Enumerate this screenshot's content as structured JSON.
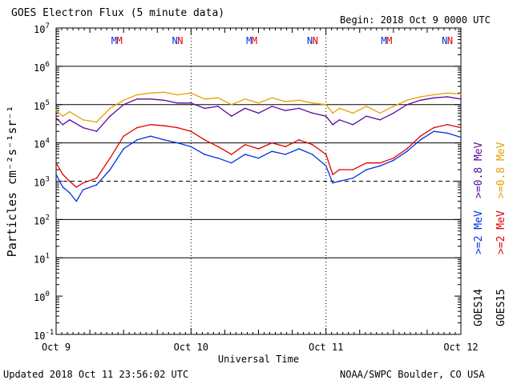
{
  "header": {
    "title": "GOES Electron Flux (5 minute data)",
    "begin": "Begin: 2018 Oct 9 0000 UTC"
  },
  "footer": {
    "updated": "Updated 2018 Oct 11 23:56:02 UTC",
    "credit": "NOAA/SWPC Boulder, CO USA"
  },
  "chart_data": {
    "type": "line",
    "title": "GOES Electron Flux (5 minute data)",
    "xlabel": "Universal Time",
    "ylabel": "Particles cm⁻²s⁻¹sr⁻¹",
    "yscale": "log",
    "ylim": [
      0.1,
      10000000
    ],
    "xlim_days": [
      0,
      3
    ],
    "x_tick_labels": [
      "Oct 9",
      "Oct 10",
      "Oct 11",
      "Oct 12"
    ],
    "y_tick_labels": [
      {
        "base": "10",
        "exp": "-1"
      },
      {
        "base": "10",
        "exp": "0"
      },
      {
        "base": "10",
        "exp": "1"
      },
      {
        "base": "10",
        "exp": "2"
      },
      {
        "base": "10",
        "exp": "3"
      },
      {
        "base": "10",
        "exp": "4"
      },
      {
        "base": "10",
        "exp": "5"
      },
      {
        "base": "10",
        "exp": "6"
      },
      {
        "base": "10",
        "exp": "7"
      }
    ],
    "threshold_dashed": 1000,
    "reference_lines": [
      10,
      100,
      10000,
      100000,
      1000000
    ],
    "grid": "horizontal lines at each decade, dotted vertical day dividers",
    "markers": {
      "M_blue": [
        0.43,
        1.43,
        2.43
      ],
      "M_red": [
        0.47,
        1.47,
        2.47
      ],
      "N_blue": [
        0.88,
        1.88,
        2.88
      ],
      "N_red": [
        0.92,
        1.92,
        2.92
      ]
    },
    "series": [
      {
        "name": "GOES15 >=0.8 MeV",
        "color": "#e8a000",
        "x": [
          0,
          0.05,
          0.1,
          0.2,
          0.3,
          0.4,
          0.5,
          0.6,
          0.7,
          0.8,
          0.9,
          1.0,
          1.1,
          1.2,
          1.3,
          1.4,
          1.5,
          1.6,
          1.7,
          1.8,
          1.9,
          2.0,
          2.05,
          2.1,
          2.2,
          2.3,
          2.4,
          2.5,
          2.6,
          2.7,
          2.8,
          2.9,
          3.0
        ],
        "y": [
          70000,
          50000,
          65000,
          40000,
          35000,
          80000,
          130000,
          180000,
          200000,
          210000,
          180000,
          200000,
          140000,
          150000,
          100000,
          140000,
          110000,
          150000,
          120000,
          130000,
          110000,
          100000,
          60000,
          80000,
          60000,
          90000,
          60000,
          90000,
          130000,
          160000,
          180000,
          200000,
          190000
        ]
      },
      {
        "name": "GOES14 >=0.8 MeV",
        "color": "#5a0a9a",
        "x": [
          0,
          0.05,
          0.1,
          0.2,
          0.3,
          0.4,
          0.5,
          0.6,
          0.7,
          0.8,
          0.9,
          1.0,
          1.1,
          1.2,
          1.3,
          1.4,
          1.5,
          1.6,
          1.7,
          1.8,
          1.9,
          2.0,
          2.05,
          2.1,
          2.2,
          2.3,
          2.4,
          2.5,
          2.6,
          2.7,
          2.8,
          2.9,
          3.0
        ],
        "y": [
          45000,
          30000,
          40000,
          25000,
          20000,
          50000,
          100000,
          140000,
          140000,
          130000,
          110000,
          110000,
          80000,
          90000,
          50000,
          80000,
          60000,
          90000,
          70000,
          80000,
          60000,
          50000,
          30000,
          40000,
          30000,
          50000,
          40000,
          60000,
          100000,
          130000,
          150000,
          160000,
          140000
        ]
      },
      {
        "name": "GOES15 >=2 MeV",
        "color": "#e00000",
        "x": [
          0,
          0.05,
          0.1,
          0.15,
          0.2,
          0.3,
          0.4,
          0.5,
          0.6,
          0.7,
          0.8,
          0.9,
          1.0,
          1.1,
          1.2,
          1.3,
          1.4,
          1.5,
          1.6,
          1.7,
          1.8,
          1.9,
          2.0,
          2.05,
          2.1,
          2.2,
          2.3,
          2.4,
          2.5,
          2.6,
          2.7,
          2.8,
          2.9,
          3.0
        ],
        "y": [
          3000,
          1500,
          1000,
          700,
          900,
          1200,
          4000,
          15000,
          25000,
          30000,
          28000,
          25000,
          20000,
          12000,
          8000,
          5000,
          9000,
          7000,
          10000,
          8000,
          12000,
          9000,
          5000,
          1500,
          2000,
          2000,
          3000,
          3000,
          4000,
          7000,
          15000,
          25000,
          30000,
          25000
        ]
      },
      {
        "name": "GOES14 >=2 MeV",
        "color": "#0030e0",
        "x": [
          0,
          0.05,
          0.1,
          0.15,
          0.2,
          0.3,
          0.4,
          0.5,
          0.6,
          0.7,
          0.8,
          0.9,
          1.0,
          1.1,
          1.2,
          1.3,
          1.4,
          1.5,
          1.6,
          1.7,
          1.8,
          1.9,
          2.0,
          2.05,
          2.1,
          2.2,
          2.3,
          2.4,
          2.5,
          2.6,
          2.7,
          2.8,
          2.9,
          3.0
        ],
        "y": [
          1500,
          700,
          500,
          300,
          600,
          800,
          2000,
          7000,
          12000,
          15000,
          12000,
          10000,
          8000,
          5000,
          4000,
          3000,
          5000,
          4000,
          6000,
          5000,
          7000,
          5000,
          2500,
          900,
          1000,
          1200,
          2000,
          2500,
          3500,
          6000,
          12000,
          20000,
          18000,
          14000
        ]
      }
    ],
    "legend": {
      "goes14": "GOES14",
      "goes15": "GOES15",
      "purple": ">=0.8 MeV",
      "orange": ">=0.8 MeV",
      "blue": ">=2 MeV",
      "red": ">=2 MeV"
    }
  }
}
